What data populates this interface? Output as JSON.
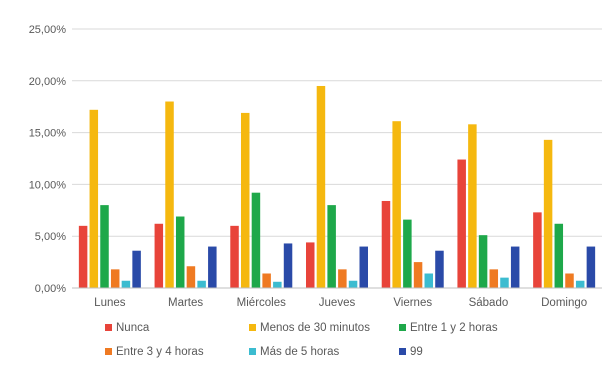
{
  "chart_data": {
    "type": "bar",
    "categories": [
      "Lunes",
      "Martes",
      "Miércoles",
      "Jueves",
      "Viernes",
      "Sábado",
      "Domingo"
    ],
    "ylim": [
      0,
      25
    ],
    "yticks": [
      0,
      5,
      10,
      15,
      20,
      25
    ],
    "ytick_labels": [
      "0,00%",
      "5,00%",
      "10,00%",
      "15,00%",
      "20,00%",
      "25,00%"
    ],
    "grid": true,
    "legend_position": "bottom",
    "series": [
      {
        "name": "Nunca",
        "color": "#e8443a",
        "values": [
          6.0,
          6.2,
          6.0,
          4.4,
          8.4,
          12.4,
          7.3
        ]
      },
      {
        "name": "Menos de 30 minutos",
        "color": "#f5b80f",
        "values": [
          17.2,
          18.0,
          16.9,
          19.5,
          16.1,
          15.8,
          14.3
        ]
      },
      {
        "name": "Entre 1 y 2 horas",
        "color": "#1ea84a",
        "values": [
          8.0,
          6.9,
          9.2,
          8.0,
          6.6,
          5.1,
          6.2
        ]
      },
      {
        "name": "Entre 3 y 4 horas",
        "color": "#ef7a22",
        "values": [
          1.8,
          2.1,
          1.4,
          1.8,
          2.5,
          1.8,
          1.4
        ]
      },
      {
        "name": "Más de 5 horas",
        "color": "#3cbcd0",
        "values": [
          0.7,
          0.7,
          0.6,
          0.7,
          1.4,
          1.0,
          0.7
        ]
      },
      {
        "name": "99",
        "color": "#2a4aa8",
        "values": [
          3.6,
          4.0,
          4.3,
          4.0,
          3.6,
          4.0,
          4.0
        ]
      }
    ]
  }
}
